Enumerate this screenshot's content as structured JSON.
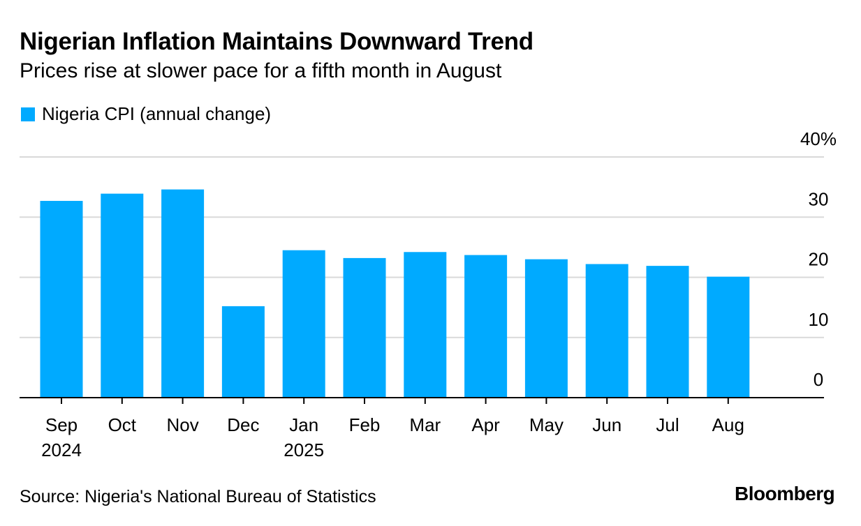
{
  "title": "Nigerian Inflation Maintains Downward Trend",
  "subtitle": "Prices rise at slower pace for a fifth month in August",
  "legend": {
    "label": "Nigeria CPI (annual change)",
    "color": "#00aaff"
  },
  "source": "Source: Nigeria's National Bureau of Statistics",
  "brand": "Bloomberg",
  "chart_data": {
    "type": "bar",
    "categories": [
      "Sep 2024",
      "Oct",
      "Nov",
      "Dec",
      "Jan 2025",
      "Feb",
      "Mar",
      "Apr",
      "May",
      "Jun",
      "Jul",
      "Aug"
    ],
    "x_tick_labels": [
      [
        "Sep",
        "2024"
      ],
      [
        "Oct"
      ],
      [
        "Nov"
      ],
      [
        "Dec"
      ],
      [
        "Jan",
        "2025"
      ],
      [
        "Feb"
      ],
      [
        "Mar"
      ],
      [
        "Apr"
      ],
      [
        "May"
      ],
      [
        "Jun"
      ],
      [
        "Jul"
      ],
      [
        "Aug"
      ]
    ],
    "series": [
      {
        "name": "Nigeria CPI (annual change)",
        "values": [
          32.7,
          33.9,
          34.6,
          15.2,
          24.5,
          23.2,
          24.2,
          23.7,
          23.0,
          22.2,
          21.9,
          20.1
        ]
      }
    ],
    "y_ticks": [
      0,
      10,
      20,
      30,
      40
    ],
    "y_tick_labels": [
      "0",
      "10",
      "20",
      "30",
      "40%"
    ],
    "ylim": [
      0,
      40
    ],
    "y_axis_position": "right",
    "grid": true,
    "bar_color": "#00aaff",
    "legend_position": "top-left"
  }
}
